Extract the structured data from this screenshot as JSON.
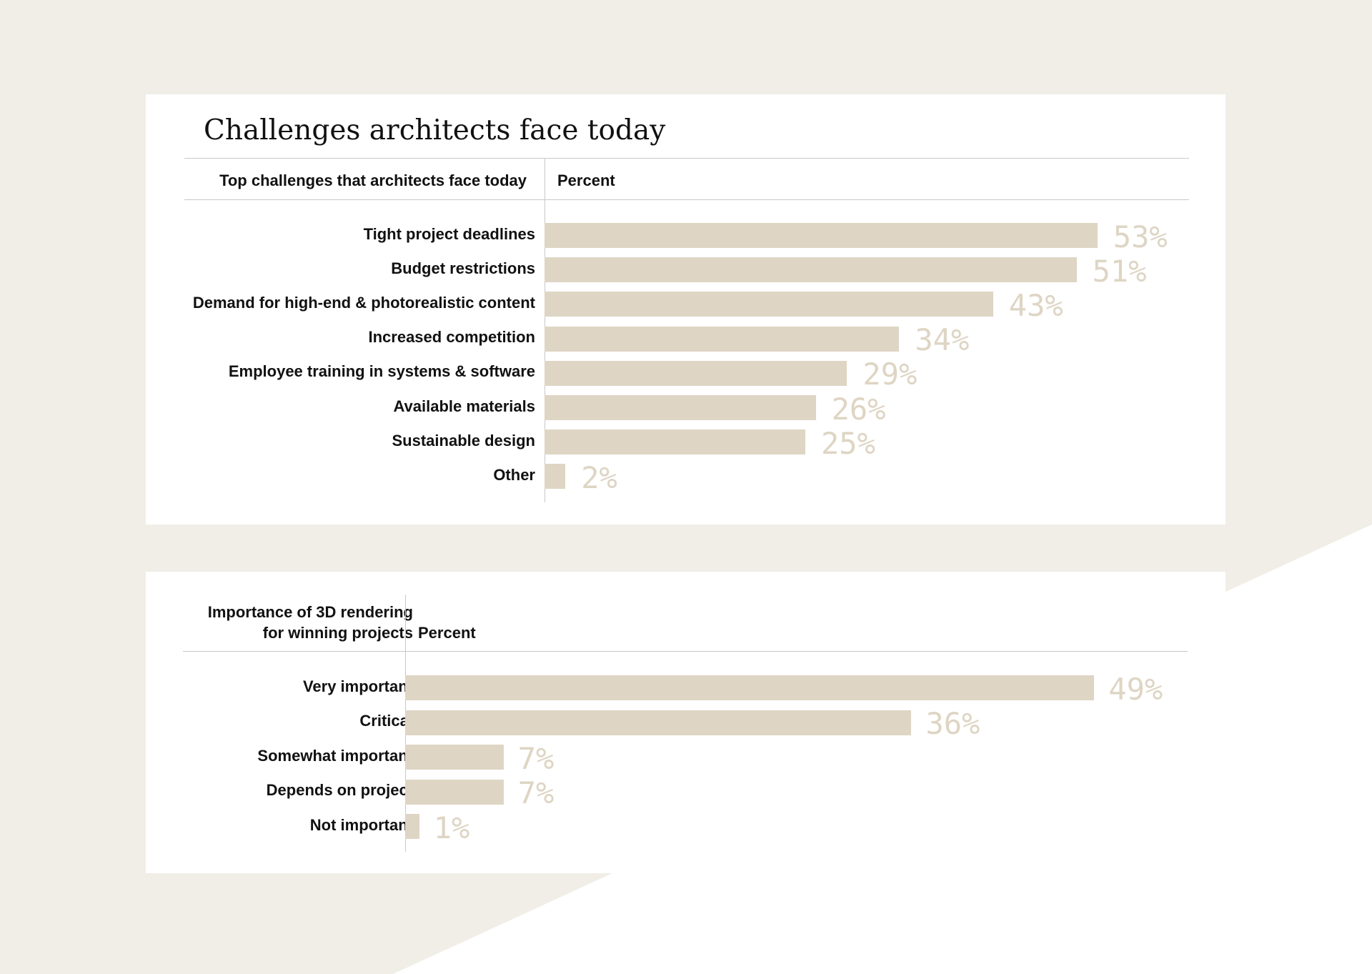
{
  "colors": {
    "page_background": "#f1eee7",
    "background_shape": "#ffffff",
    "card": "#ffffff",
    "bar": "#ded5c4",
    "value_label": "#ded5c4",
    "text": "#111111",
    "rule": "#c8c8c8"
  },
  "chart_data": [
    {
      "type": "bar",
      "orientation": "horizontal",
      "title": "Challenges architects face today",
      "category_header": "Top challenges that architects face today",
      "value_header": "Percent",
      "unit": "%",
      "categories": [
        "Tight project deadlines",
        "Budget restrictions",
        "Demand for high-end & photorealistic content",
        "Increased competition",
        "Employee training in systems & software",
        "Available materials",
        "Sustainable design",
        "Other"
      ],
      "values": [
        53,
        51,
        43,
        34,
        29,
        26,
        25,
        2
      ],
      "labels": [
        "53%",
        "51%",
        "43%",
        "34%",
        "29%",
        "26%",
        "25%",
        "2%"
      ]
    },
    {
      "type": "bar",
      "orientation": "horizontal",
      "title": "",
      "category_header": [
        "Importance of 3D rendering",
        "for winning projects"
      ],
      "value_header": "Percent",
      "unit": "%",
      "categories": [
        "Very important",
        "Critical",
        "Somewhat important",
        "Depends on project",
        "Not important"
      ],
      "values": [
        49,
        36,
        7,
        7,
        1
      ],
      "labels": [
        "49%",
        "36%",
        "7%",
        "7%",
        "1%"
      ]
    }
  ]
}
